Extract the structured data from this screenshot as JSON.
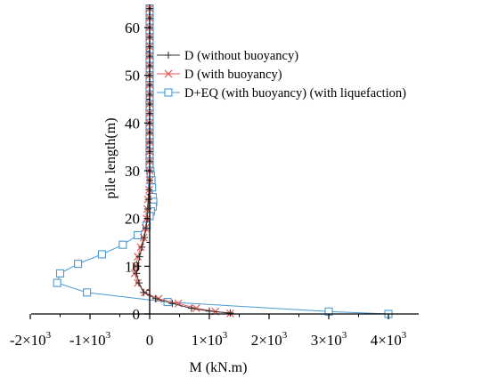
{
  "chart_data": {
    "type": "line",
    "xlabel": "M (kN.m)",
    "ylabel": "pile length(m)",
    "xlim": [
      -2300,
      4500
    ],
    "ylim": [
      0,
      64
    ],
    "x_ticks": [
      {
        "value": -2000,
        "mantissa": "-2×10",
        "exp": "3"
      },
      {
        "value": -1000,
        "mantissa": "-1×10",
        "exp": "3"
      },
      {
        "value": 0,
        "mantissa": "0",
        "exp": ""
      },
      {
        "value": 1000,
        "mantissa": "1×10",
        "exp": "3"
      },
      {
        "value": 2000,
        "mantissa": "2×10",
        "exp": "3"
      },
      {
        "value": 3000,
        "mantissa": "3×10",
        "exp": "3"
      },
      {
        "value": 4000,
        "mantissa": "4×10",
        "exp": "3"
      }
    ],
    "y_ticks": [
      0,
      10,
      20,
      30,
      40,
      50,
      60
    ],
    "grid": false,
    "legend_position": "top-right",
    "series": [
      {
        "name": "D (without buoyancy)",
        "color": "#333333",
        "marker": "plus",
        "points": [
          [
            0,
            64
          ],
          [
            0,
            62
          ],
          [
            0,
            60
          ],
          [
            0,
            58
          ],
          [
            0,
            56
          ],
          [
            0,
            54
          ],
          [
            0,
            52
          ],
          [
            0,
            50
          ],
          [
            0,
            48
          ],
          [
            0,
            46
          ],
          [
            0,
            44
          ],
          [
            0,
            42
          ],
          [
            0,
            40
          ],
          [
            0,
            38
          ],
          [
            0,
            36
          ],
          [
            0,
            34
          ],
          [
            0,
            32
          ],
          [
            0,
            30
          ],
          [
            0,
            28
          ],
          [
            -10,
            26
          ],
          [
            -20,
            24
          ],
          [
            -30,
            22
          ],
          [
            -40,
            20
          ],
          [
            -60,
            18
          ],
          [
            -90,
            16
          ],
          [
            -130,
            14
          ],
          [
            -170,
            12
          ],
          [
            -200,
            10
          ],
          [
            -220,
            8.5
          ],
          [
            -180,
            6.5
          ],
          [
            -100,
            4.5
          ],
          [
            100,
            3.2
          ],
          [
            380,
            2.2
          ],
          [
            700,
            1.2
          ],
          [
            1000,
            0.6
          ],
          [
            1350,
            0.2
          ]
        ]
      },
      {
        "name": "D (with buoyancy)",
        "color": "#e8574f",
        "marker": "x",
        "points": [
          [
            0,
            64
          ],
          [
            0,
            62
          ],
          [
            0,
            60
          ],
          [
            0,
            58
          ],
          [
            0,
            56
          ],
          [
            0,
            54
          ],
          [
            0,
            52
          ],
          [
            0,
            50
          ],
          [
            0,
            48
          ],
          [
            0,
            46
          ],
          [
            0,
            44
          ],
          [
            0,
            42
          ],
          [
            0,
            40
          ],
          [
            0,
            38
          ],
          [
            0,
            36
          ],
          [
            0,
            34
          ],
          [
            0,
            32
          ],
          [
            0,
            30
          ],
          [
            0,
            28
          ],
          [
            -10,
            26
          ],
          [
            -30,
            24
          ],
          [
            -40,
            22
          ],
          [
            -50,
            20
          ],
          [
            -70,
            18
          ],
          [
            -100,
            16
          ],
          [
            -150,
            14
          ],
          [
            -200,
            12
          ],
          [
            -230,
            10
          ],
          [
            -250,
            8.5
          ],
          [
            -200,
            6.5
          ],
          [
            -80,
            4.5
          ],
          [
            150,
            3.2
          ],
          [
            480,
            2.2
          ],
          [
            780,
            1.2
          ],
          [
            1100,
            0.5
          ],
          [
            1350,
            0.1
          ]
        ]
      },
      {
        "name": "D+EQ (with buoyancy) (with liquefaction)",
        "color": "#4a9ad4",
        "marker": "square",
        "points": [
          [
            0,
            64
          ],
          [
            0,
            63
          ],
          [
            0,
            62
          ],
          [
            0,
            61
          ],
          [
            0,
            60
          ],
          [
            0,
            59
          ],
          [
            0,
            58
          ],
          [
            0,
            57
          ],
          [
            0,
            56
          ],
          [
            0,
            55
          ],
          [
            0,
            54
          ],
          [
            0,
            53
          ],
          [
            0,
            52
          ],
          [
            0,
            51
          ],
          [
            0,
            50
          ],
          [
            0,
            49
          ],
          [
            0,
            48
          ],
          [
            0,
            47
          ],
          [
            0,
            46
          ],
          [
            0,
            45
          ],
          [
            0,
            44
          ],
          [
            0,
            43
          ],
          [
            0,
            42
          ],
          [
            0,
            41
          ],
          [
            0,
            40
          ],
          [
            0,
            39
          ],
          [
            0,
            38
          ],
          [
            0,
            37
          ],
          [
            0,
            36
          ],
          [
            0,
            35
          ],
          [
            0,
            34
          ],
          [
            0,
            33
          ],
          [
            0,
            32
          ],
          [
            0,
            31
          ],
          [
            10,
            30
          ],
          [
            20,
            29
          ],
          [
            30,
            28
          ],
          [
            40,
            26.5
          ],
          [
            50,
            24.5
          ],
          [
            60,
            23.5
          ],
          [
            50,
            22.5
          ],
          [
            20,
            21.5
          ],
          [
            0,
            20.5
          ],
          [
            -50,
            18.5
          ],
          [
            -200,
            16.5
          ],
          [
            -450,
            14.5
          ],
          [
            -800,
            12.5
          ],
          [
            -1200,
            10.5
          ],
          [
            -1500,
            8.5
          ],
          [
            -1550,
            6.5
          ],
          [
            -1050,
            4.5
          ],
          [
            300,
            2.5
          ],
          [
            3000,
            0.5
          ],
          [
            4000,
            0
          ]
        ]
      }
    ]
  }
}
